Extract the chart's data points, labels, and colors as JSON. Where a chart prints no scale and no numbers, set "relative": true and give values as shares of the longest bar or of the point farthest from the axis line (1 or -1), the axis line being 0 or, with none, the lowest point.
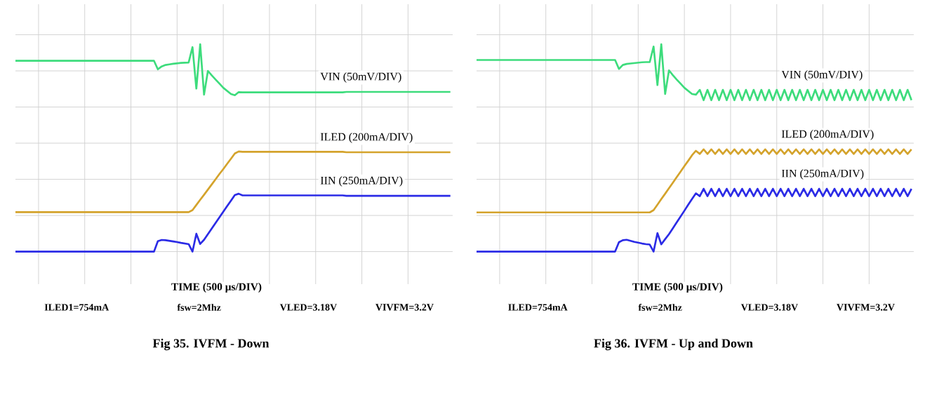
{
  "chart_data": [
    {
      "type": "line",
      "relative": true,
      "tick_labels": false,
      "grid": true,
      "xlabel": "TIME (500 µs/DIV)",
      "title": "Fig 35.    IVFM - Down",
      "annotations": [
        "ILED1=754mA",
        "fsw=2Mhz",
        "VLED=3.18V",
        "VIVFM=3.2V"
      ],
      "categories": [
        null,
        null,
        null,
        null,
        null,
        null,
        null,
        null,
        null,
        null,
        null,
        null,
        null,
        null,
        null,
        null,
        null,
        null,
        null,
        null,
        null,
        null,
        null,
        null,
        null,
        null,
        null,
        null,
        null,
        null,
        null,
        null,
        null,
        null,
        null,
        null,
        null,
        null,
        null,
        null,
        null,
        null,
        null,
        null,
        null,
        null,
        null,
        null,
        null,
        null,
        null,
        null,
        null,
        null,
        null,
        null,
        null,
        null,
        null,
        null,
        null,
        null,
        null,
        null,
        null,
        null,
        null,
        null,
        null,
        null,
        null,
        null,
        null,
        null,
        null,
        null,
        null,
        null,
        null,
        null,
        null,
        null,
        null,
        null,
        null,
        null,
        null,
        null,
        null,
        null,
        null,
        null,
        null,
        null,
        null,
        null,
        null,
        null,
        null,
        null,
        null,
        null,
        null,
        null,
        null,
        null,
        null,
        null,
        null,
        null,
        null,
        null,
        null,
        null
      ],
      "series": [
        {
          "name": "VIN (50mV/DIV)",
          "color": "#3ddc7c",
          "values": [
            0.92,
            0.92,
            0.92,
            0.92,
            0.92,
            0.92,
            0.92,
            0.92,
            0.92,
            0.92,
            0.92,
            0.92,
            0.92,
            0.92,
            0.92,
            0.92,
            0.92,
            0.92,
            0.92,
            0.92,
            0.92,
            0.92,
            0.92,
            0.92,
            0.92,
            0.92,
            0.92,
            0.92,
            0.92,
            0.92,
            0.92,
            0.92,
            0.92,
            0.92,
            0.92,
            0.92,
            0.92,
            0.879,
            0.893,
            0.9,
            0.903,
            0.906,
            0.908,
            0.91,
            0.911,
            0.912,
            0.986,
            0.786,
            1.0,
            0.757,
            0.871,
            0.85,
            0.83,
            0.81,
            0.79,
            0.775,
            0.76,
            0.754,
            0.769,
            0.768,
            0.768,
            0.768,
            0.768,
            0.768,
            0.768,
            0.768,
            0.768,
            0.768,
            0.768,
            0.768,
            0.768,
            0.768,
            0.768,
            0.768,
            0.768,
            0.768,
            0.768,
            0.768,
            0.768,
            0.768,
            0.768,
            0.768,
            0.768,
            0.768,
            0.768,
            0.768,
            0.77,
            0.77,
            0.77,
            0.77,
            0.77,
            0.77,
            0.77,
            0.77,
            0.77,
            0.77,
            0.77,
            0.77,
            0.77,
            0.77,
            0.77,
            0.77,
            0.77,
            0.77,
            0.77,
            0.77,
            0.77,
            0.77,
            0.77,
            0.77,
            0.77,
            0.77,
            0.77,
            0.77
          ]
        },
        {
          "name": "ILED (200mA/DIV)",
          "color": "#d4a32c",
          "values": [
            0.19,
            0.19,
            0.19,
            0.19,
            0.19,
            0.19,
            0.19,
            0.19,
            0.19,
            0.19,
            0.19,
            0.19,
            0.19,
            0.19,
            0.19,
            0.19,
            0.19,
            0.19,
            0.19,
            0.19,
            0.19,
            0.19,
            0.19,
            0.19,
            0.19,
            0.19,
            0.19,
            0.19,
            0.19,
            0.19,
            0.19,
            0.19,
            0.19,
            0.19,
            0.19,
            0.19,
            0.19,
            0.19,
            0.19,
            0.19,
            0.19,
            0.19,
            0.19,
            0.19,
            0.19,
            0.19,
            0.2,
            0.225,
            0.25,
            0.274,
            0.299,
            0.324,
            0.349,
            0.374,
            0.398,
            0.423,
            0.448,
            0.473,
            0.483,
            0.481,
            0.481,
            0.481,
            0.481,
            0.481,
            0.481,
            0.481,
            0.481,
            0.481,
            0.481,
            0.481,
            0.481,
            0.481,
            0.481,
            0.481,
            0.481,
            0.481,
            0.481,
            0.481,
            0.481,
            0.481,
            0.481,
            0.481,
            0.481,
            0.481,
            0.481,
            0.481,
            0.479,
            0.479,
            0.479,
            0.479,
            0.479,
            0.479,
            0.479,
            0.479,
            0.479,
            0.479,
            0.479,
            0.479,
            0.479,
            0.479,
            0.479,
            0.479,
            0.479,
            0.479,
            0.479,
            0.479,
            0.479,
            0.479,
            0.479,
            0.479,
            0.479,
            0.479,
            0.479,
            0.479
          ]
        },
        {
          "name": "IIN (250mA/DIV)",
          "color": "#2b2be6",
          "values": [
            0,
            0,
            0,
            0,
            0,
            0,
            0,
            0,
            0,
            0,
            0,
            0,
            0,
            0,
            0,
            0,
            0,
            0,
            0,
            0,
            0,
            0,
            0,
            0,
            0,
            0,
            0,
            0,
            0,
            0,
            0,
            0,
            0,
            0,
            0,
            0,
            0,
            0.05,
            0.056,
            0.055,
            0.052,
            0.049,
            0.046,
            0.042,
            0.039,
            0.036,
            0,
            0.086,
            0.037,
            0.057,
            0.084,
            0.111,
            0.138,
            0.165,
            0.192,
            0.219,
            0.246,
            0.273,
            0.279,
            0.271,
            0.271,
            0.271,
            0.271,
            0.271,
            0.271,
            0.271,
            0.271,
            0.271,
            0.271,
            0.271,
            0.271,
            0.271,
            0.271,
            0.271,
            0.271,
            0.271,
            0.271,
            0.271,
            0.271,
            0.271,
            0.271,
            0.271,
            0.271,
            0.271,
            0.271,
            0.271,
            0.269,
            0.269,
            0.269,
            0.269,
            0.269,
            0.269,
            0.269,
            0.269,
            0.269,
            0.269,
            0.269,
            0.269,
            0.269,
            0.269,
            0.269,
            0.269,
            0.269,
            0.269,
            0.269,
            0.269,
            0.269,
            0.269,
            0.269,
            0.269,
            0.269,
            0.269,
            0.269,
            0.269
          ]
        }
      ]
    },
    {
      "type": "line",
      "relative": true,
      "tick_labels": false,
      "grid": true,
      "xlabel": "TIME (500 µs/DIV)",
      "title": "Fig 36.    IVFM - Up and Down",
      "annotations": [
        "ILED=754mA",
        "fsw=2Mhz",
        "VLED=3.18V",
        "VIVFM=3.2V"
      ],
      "categories": [
        null,
        null,
        null,
        null,
        null,
        null,
        null,
        null,
        null,
        null,
        null,
        null,
        null,
        null,
        null,
        null,
        null,
        null,
        null,
        null,
        null,
        null,
        null,
        null,
        null,
        null,
        null,
        null,
        null,
        null,
        null,
        null,
        null,
        null,
        null,
        null,
        null,
        null,
        null,
        null,
        null,
        null,
        null,
        null,
        null,
        null,
        null,
        null,
        null,
        null,
        null,
        null,
        null,
        null,
        null,
        null,
        null,
        null,
        null,
        null,
        null,
        null,
        null,
        null,
        null,
        null,
        null,
        null,
        null,
        null,
        null,
        null,
        null,
        null,
        null,
        null,
        null,
        null,
        null,
        null,
        null,
        null,
        null,
        null,
        null,
        null,
        null,
        null,
        null,
        null,
        null,
        null,
        null,
        null,
        null,
        null,
        null,
        null,
        null,
        null,
        null,
        null,
        null,
        null,
        null,
        null,
        null,
        null,
        null,
        null,
        null,
        null,
        null,
        null
      ],
      "series": [
        {
          "name": "VIN (50mV/DIV)",
          "color": "#3ddc7c",
          "values": [
            0.924,
            0.924,
            0.924,
            0.924,
            0.924,
            0.924,
            0.924,
            0.924,
            0.924,
            0.924,
            0.924,
            0.924,
            0.924,
            0.924,
            0.924,
            0.924,
            0.924,
            0.924,
            0.924,
            0.924,
            0.924,
            0.924,
            0.924,
            0.924,
            0.924,
            0.924,
            0.924,
            0.924,
            0.924,
            0.924,
            0.924,
            0.924,
            0.924,
            0.924,
            0.924,
            0.924,
            0.924,
            0.881,
            0.9,
            0.905,
            0.907,
            0.909,
            0.911,
            0.913,
            0.914,
            0.914,
            0.989,
            0.803,
            1.0,
            0.76,
            0.874,
            0.851,
            0.83,
            0.81,
            0.79,
            0.775,
            0.76,
            0.757,
            0.78,
            0.73,
            0.78,
            0.73,
            0.78,
            0.73,
            0.78,
            0.73,
            0.78,
            0.73,
            0.78,
            0.73,
            0.78,
            0.73,
            0.78,
            0.73,
            0.78,
            0.73,
            0.78,
            0.73,
            0.78,
            0.73,
            0.78,
            0.73,
            0.78,
            0.73,
            0.78,
            0.73,
            0.78,
            0.73,
            0.78,
            0.73,
            0.78,
            0.73,
            0.78,
            0.73,
            0.78,
            0.73,
            0.78,
            0.73,
            0.78,
            0.73,
            0.78,
            0.73,
            0.78,
            0.73,
            0.78,
            0.73,
            0.78,
            0.73,
            0.78,
            0.73,
            0.78,
            0.73,
            0.78,
            0.73
          ]
        },
        {
          "name": "ILED (200mA/DIV)",
          "color": "#d4a32c",
          "values": [
            0.189,
            0.189,
            0.189,
            0.189,
            0.189,
            0.189,
            0.189,
            0.189,
            0.189,
            0.189,
            0.189,
            0.189,
            0.189,
            0.189,
            0.189,
            0.189,
            0.189,
            0.189,
            0.189,
            0.189,
            0.189,
            0.189,
            0.189,
            0.189,
            0.189,
            0.189,
            0.189,
            0.189,
            0.189,
            0.189,
            0.189,
            0.189,
            0.189,
            0.189,
            0.189,
            0.189,
            0.189,
            0.189,
            0.189,
            0.189,
            0.189,
            0.189,
            0.189,
            0.189,
            0.189,
            0.189,
            0.2,
            0.226,
            0.253,
            0.279,
            0.306,
            0.332,
            0.359,
            0.385,
            0.412,
            0.438,
            0.465,
            0.486,
            0.471,
            0.493,
            0.471,
            0.493,
            0.471,
            0.493,
            0.471,
            0.493,
            0.471,
            0.493,
            0.471,
            0.493,
            0.471,
            0.493,
            0.471,
            0.493,
            0.471,
            0.493,
            0.471,
            0.493,
            0.471,
            0.493,
            0.471,
            0.493,
            0.471,
            0.493,
            0.471,
            0.493,
            0.471,
            0.493,
            0.471,
            0.493,
            0.471,
            0.493,
            0.471,
            0.493,
            0.471,
            0.493,
            0.471,
            0.493,
            0.471,
            0.493,
            0.471,
            0.493,
            0.471,
            0.493,
            0.471,
            0.493,
            0.471,
            0.493,
            0.471,
            0.493,
            0.471,
            0.493,
            0.471,
            0.493
          ]
        },
        {
          "name": "IIN (250mA/DIV)",
          "color": "#2b2be6",
          "values": [
            0,
            0,
            0,
            0,
            0,
            0,
            0,
            0,
            0,
            0,
            0,
            0,
            0,
            0,
            0,
            0,
            0,
            0,
            0,
            0,
            0,
            0,
            0,
            0,
            0,
            0,
            0,
            0,
            0,
            0,
            0,
            0,
            0,
            0,
            0,
            0,
            0,
            0.045,
            0.055,
            0.057,
            0.052,
            0.047,
            0.043,
            0.039,
            0.036,
            0.034,
            0,
            0.089,
            0.035,
            0.06,
            0.084,
            0.112,
            0.141,
            0.169,
            0.197,
            0.226,
            0.254,
            0.281,
            0.267,
            0.303,
            0.267,
            0.303,
            0.267,
            0.303,
            0.267,
            0.303,
            0.267,
            0.303,
            0.267,
            0.303,
            0.267,
            0.303,
            0.267,
            0.303,
            0.267,
            0.303,
            0.267,
            0.303,
            0.267,
            0.303,
            0.267,
            0.303,
            0.267,
            0.303,
            0.267,
            0.303,
            0.267,
            0.303,
            0.267,
            0.303,
            0.267,
            0.303,
            0.267,
            0.303,
            0.267,
            0.303,
            0.267,
            0.303,
            0.267,
            0.303,
            0.267,
            0.303,
            0.267,
            0.303,
            0.267,
            0.303,
            0.267,
            0.303,
            0.267,
            0.303,
            0.267,
            0.303,
            0.267,
            0.303
          ]
        }
      ]
    }
  ]
}
